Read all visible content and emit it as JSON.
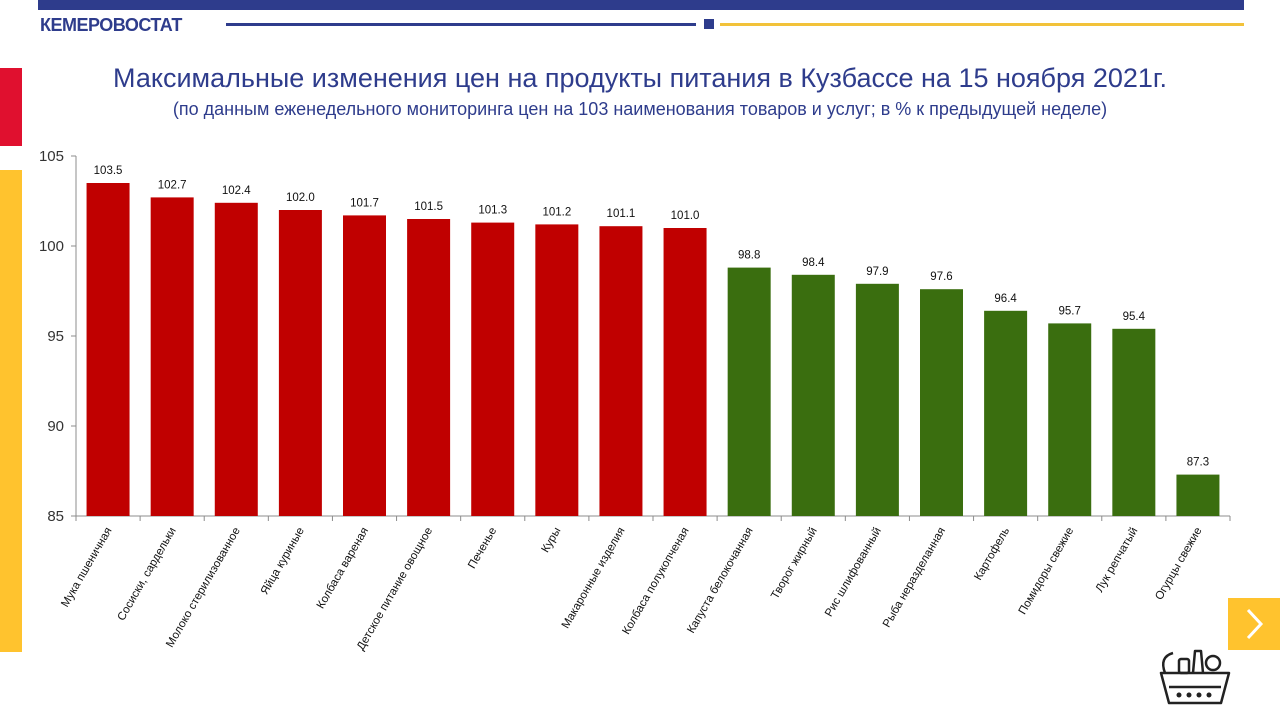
{
  "header": {
    "brand": "КЕМЕРОВОСТАТ",
    "title": "Максимальные изменения цен на продукты питания в Кузбассе на 15 ноября 2021г.",
    "subtitle": "(по данным еженедельного мониторинга цен на 103 наименования товаров и услуг; в % к предыдущей неделе)"
  },
  "colors": {
    "brand_blue": "#2e3c8c",
    "accent_yellow": "#ffc32e",
    "accent_red": "#e0102f",
    "increase": "#c00000",
    "decrease": "#3a6e0f"
  },
  "icons": {
    "next": "chevron-right-icon",
    "logo": "basket-icon"
  },
  "chart_data": {
    "type": "bar",
    "categories": [
      "Мука пшеничная",
      "Сосиски, сардельки",
      "Молоко стерилизованное",
      "Яйца куриные",
      "Колбаса вареная",
      "Детское питание овощное",
      "Печенье",
      "Куры",
      "Макаронные изделия",
      "Колбаса полукопченая",
      "Капуста белокочанная",
      "Творог жирный",
      "Рис шлифованный",
      "Рыба неразделанная",
      "Картофель",
      "Помидоры свежие",
      "Лук репчатый",
      "Огурцы свежие"
    ],
    "values": [
      103.5,
      102.7,
      102.4,
      102.0,
      101.7,
      101.5,
      101.3,
      101.2,
      101.1,
      101.0,
      98.8,
      98.4,
      97.9,
      97.6,
      96.4,
      95.7,
      95.4,
      87.3
    ],
    "value_labels": [
      "103.5",
      "102.7",
      "102.4",
      "102.0",
      "101.7",
      "101.5",
      "101.3",
      "101.2",
      "101.1",
      "101.0",
      "98.8",
      "98.4",
      "97.9",
      "97.6",
      "96.4",
      "95.7",
      "95.4",
      "87.3"
    ],
    "ylim": [
      85,
      105
    ],
    "yticks": [
      85,
      90,
      95,
      100,
      105
    ],
    "baseline": 100,
    "color_above_baseline": "#c00000",
    "color_below_baseline": "#3a6e0f",
    "grid": false,
    "legend": "none"
  }
}
